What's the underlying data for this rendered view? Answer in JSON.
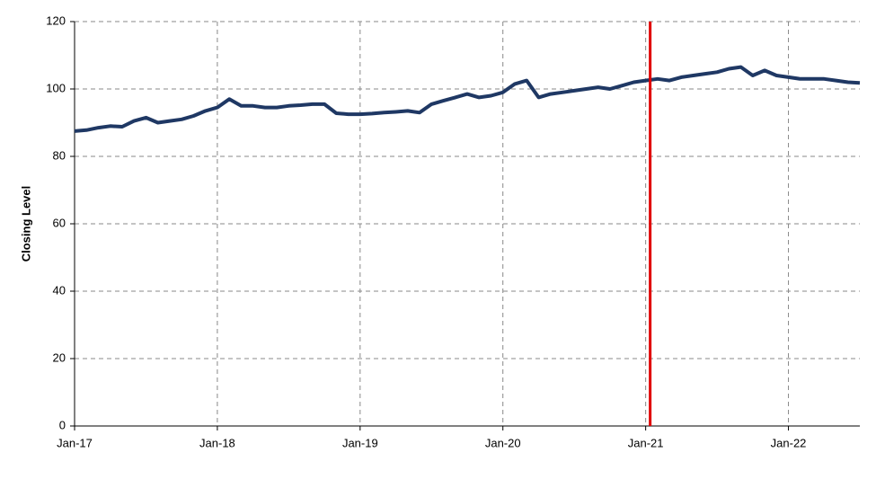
{
  "chart_data": {
    "type": "line",
    "y_label": "Closing Level",
    "x": [
      "2017-01",
      "2017-02",
      "2017-03",
      "2017-04",
      "2017-05",
      "2017-06",
      "2017-07",
      "2017-08",
      "2017-09",
      "2017-10",
      "2017-11",
      "2017-12",
      "2018-01",
      "2018-02",
      "2018-03",
      "2018-04",
      "2018-05",
      "2018-06",
      "2018-07",
      "2018-08",
      "2018-09",
      "2018-10",
      "2018-11",
      "2018-12",
      "2019-01",
      "2019-02",
      "2019-03",
      "2019-04",
      "2019-05",
      "2019-06",
      "2019-07",
      "2019-08",
      "2019-09",
      "2019-10",
      "2019-11",
      "2019-12",
      "2020-01",
      "2020-02",
      "2020-03",
      "2020-04",
      "2020-05",
      "2020-06",
      "2020-07",
      "2020-08",
      "2020-09",
      "2020-10",
      "2020-11",
      "2020-12",
      "2021-01",
      "2021-02",
      "2021-03",
      "2021-04",
      "2021-05",
      "2021-06",
      "2021-07",
      "2021-08",
      "2021-09",
      "2021-10",
      "2021-11",
      "2021-12",
      "2022-01",
      "2022-02",
      "2022-03",
      "2022-04",
      "2022-05",
      "2022-06",
      "2022-07"
    ],
    "series": [
      {
        "name": "Closing Level",
        "color": "#1f3864",
        "values": [
          87.5,
          87.8,
          88.5,
          89,
          88.8,
          90.5,
          91.5,
          90,
          90.5,
          91,
          92,
          93.5,
          94.5,
          97,
          95,
          95,
          94.5,
          94.5,
          95,
          95.2,
          95.5,
          95.5,
          92.8,
          92.5,
          92.5,
          92.7,
          93,
          93.2,
          93.5,
          93,
          95.5,
          96.5,
          97.5,
          98.5,
          97.5,
          98,
          99,
          101.5,
          102.5,
          97.5,
          98.5,
          99,
          99.5,
          100,
          100.5,
          100,
          101,
          102,
          102.5,
          103,
          102.5,
          103.5,
          104,
          104.5,
          105,
          106,
          106.5,
          104,
          105.5,
          104,
          103.5,
          103,
          103,
          103,
          102.5,
          102,
          101.8
        ]
      }
    ],
    "xlim": [
      "2017-01",
      "2022-07"
    ],
    "xticks": [
      {
        "value": "2017-01",
        "label": "Jan-17"
      },
      {
        "value": "2018-01",
        "label": "Jan-18"
      },
      {
        "value": "2019-01",
        "label": "Jan-19"
      },
      {
        "value": "2020-01",
        "label": "Jan-20"
      },
      {
        "value": "2021-01",
        "label": "Jan-21"
      },
      {
        "value": "2022-01",
        "label": "Jan-22"
      }
    ],
    "ylim": [
      0,
      120
    ],
    "yticks": [
      0,
      20,
      40,
      60,
      80,
      100,
      120
    ],
    "grid": true,
    "vline": {
      "x": "2021-01",
      "color": "#e00000"
    }
  }
}
